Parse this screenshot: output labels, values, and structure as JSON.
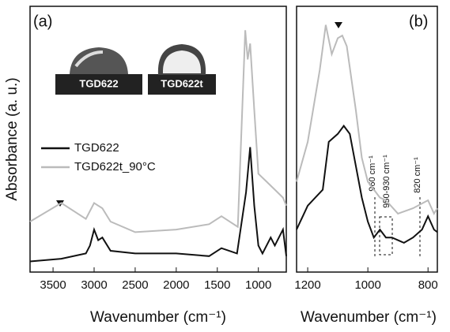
{
  "chart_data": [
    {
      "type": "line",
      "panel_label": "(a)",
      "xlabel": "Wavenumber (cm⁻¹)",
      "ylabel": "Absorbance (a. u.)",
      "xlim": [
        3780,
        660
      ],
      "xticks": [
        3500,
        3000,
        2500,
        2000,
        1500,
        1000
      ],
      "ylim": [
        0,
        1
      ],
      "insets": [
        "TGD622",
        "TGD622t"
      ],
      "series": [
        {
          "name": "TGD622",
          "color": "#111111",
          "x": [
            3780,
            3400,
            3100,
            3050,
            3000,
            2950,
            2900,
            2800,
            2500,
            2000,
            1600,
            1450,
            1260,
            1150,
            1100,
            1050,
            1000,
            950,
            850,
            800,
            700,
            660
          ],
          "values": [
            0.04,
            0.05,
            0.07,
            0.1,
            0.16,
            0.12,
            0.13,
            0.08,
            0.07,
            0.07,
            0.06,
            0.09,
            0.07,
            0.3,
            0.47,
            0.25,
            0.1,
            0.07,
            0.13,
            0.1,
            0.16,
            0.06
          ]
        },
        {
          "name": "TGD622t_90°C",
          "color": "#bbbbbb",
          "x": [
            3780,
            3400,
            3100,
            3000,
            2950,
            2900,
            2800,
            2500,
            2000,
            1600,
            1450,
            1250,
            1160,
            1130,
            1100,
            1050,
            1000,
            900,
            800,
            700,
            660
          ],
          "values": [
            0.19,
            0.26,
            0.2,
            0.26,
            0.25,
            0.24,
            0.19,
            0.15,
            0.16,
            0.18,
            0.21,
            0.17,
            0.91,
            0.8,
            0.86,
            0.61,
            0.37,
            0.34,
            0.31,
            0.28,
            0.25
          ]
        }
      ]
    },
    {
      "type": "line",
      "panel_label": "(b)",
      "xlabel": "Wavenumber (cm⁻¹)",
      "xlim": [
        1237,
        769
      ],
      "xticks": [
        1200,
        1000,
        800
      ],
      "ylim": [
        0,
        1
      ],
      "annotations": [
        "960 cm⁻¹",
        "950-930 cm⁻¹",
        "820 cm⁻¹"
      ],
      "series": [
        {
          "name": "TGD622",
          "color": "#111111",
          "x": [
            1237,
            1200,
            1150,
            1130,
            1100,
            1080,
            1060,
            1040,
            1020,
            1000,
            980,
            960,
            940,
            920,
            900,
            880,
            850,
            820,
            800,
            780,
            769
          ],
          "values": [
            0.16,
            0.25,
            0.31,
            0.49,
            0.52,
            0.55,
            0.52,
            0.4,
            0.28,
            0.19,
            0.13,
            0.16,
            0.13,
            0.13,
            0.12,
            0.11,
            0.13,
            0.16,
            0.21,
            0.16,
            0.15
          ]
        },
        {
          "name": "TGD622t_90°C",
          "color": "#bbbbbb",
          "x": [
            1237,
            1200,
            1160,
            1140,
            1120,
            1100,
            1085,
            1070,
            1040,
            1020,
            1000,
            960,
            940,
            900,
            850,
            800,
            780,
            769
          ],
          "values": [
            0.34,
            0.49,
            0.76,
            0.93,
            0.82,
            0.88,
            0.89,
            0.85,
            0.61,
            0.43,
            0.34,
            0.28,
            0.27,
            0.22,
            0.24,
            0.27,
            0.22,
            0.24
          ]
        }
      ]
    }
  ]
}
